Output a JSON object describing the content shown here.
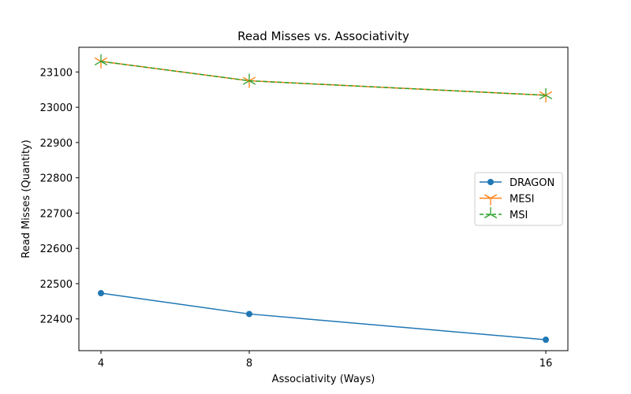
{
  "chart_data": {
    "type": "line",
    "title": "Read Misses vs. Associativity",
    "xlabel": "Associativity (Ways)",
    "ylabel": "Read Misses (Quantity)",
    "x": [
      4,
      8,
      16
    ],
    "x_ticks": [
      "4",
      "8",
      "16"
    ],
    "y_ticks": [
      "22400",
      "22500",
      "22600",
      "22700",
      "22800",
      "22900",
      "23000",
      "23100"
    ],
    "ylim": [
      22310,
      23170
    ],
    "grid": false,
    "legend_position": "center-right",
    "series": [
      {
        "name": "DRAGON",
        "values": [
          22473,
          22414,
          22341
        ],
        "color": "#1f77b4",
        "marker": "circle",
        "linestyle": "solid"
      },
      {
        "name": "MESI",
        "values": [
          23130,
          23075,
          23034
        ],
        "color": "#ff7f0e",
        "marker": "tri-down",
        "linestyle": "solid"
      },
      {
        "name": "MSI",
        "values": [
          23130,
          23075,
          23034
        ],
        "color": "#2ca02c",
        "marker": "tri-up",
        "linestyle": "dashed"
      }
    ]
  }
}
